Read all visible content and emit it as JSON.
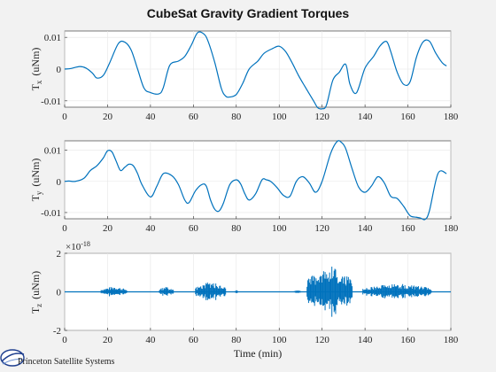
{
  "chart_data": {
    "title": "CubeSat Gravity Gradient Torques",
    "xlabel": "Time (min)",
    "xlim": [
      0,
      180
    ],
    "xticks": [
      0,
      20,
      40,
      60,
      80,
      100,
      120,
      140,
      160,
      180
    ],
    "grid": true,
    "charts": [
      {
        "type": "line",
        "ylabel_main": "T",
        "ylabel_sub": "x",
        "ylabel_unit": "(uNm)",
        "ylim": [
          -0.012,
          0.012
        ],
        "yticks": [
          -0.01,
          0,
          0.01
        ],
        "ytick_labels": [
          "-0.01",
          "0",
          "0.01"
        ],
        "color": "#0072bd",
        "series": [
          {
            "x": [
              0,
              3,
              7,
              10,
              13,
              15,
              18,
              21,
              25,
              28,
              31,
              34,
              37,
              40,
              44,
              46,
              49,
              53,
              56,
              59,
              62,
              65,
              67,
              70,
              73,
              75,
              77,
              80,
              83,
              86,
              90,
              93,
              97,
              100,
              103,
              106,
              109,
              112,
              116,
              118,
              120,
              122,
              125,
              128,
              131,
              133,
              136,
              140,
              144,
              147,
              150,
              152,
              155,
              158,
              161,
              164,
              167,
              170,
              173,
              176,
              178
            ],
            "y": [
              0,
              0.0002,
              0.0008,
              0.0003,
              -0.0013,
              -0.0028,
              -0.002,
              0.002,
              0.008,
              0.0085,
              0.006,
              0.0,
              -0.006,
              -0.0074,
              -0.0078,
              -0.0058,
              0.0012,
              0.0025,
              0.004,
              0.0075,
              0.0115,
              0.011,
              0.0085,
              0.002,
              -0.006,
              -0.0085,
              -0.0088,
              -0.008,
              -0.0045,
              0.0,
              0.0025,
              0.005,
              0.0065,
              0.0072,
              0.0055,
              0.002,
              -0.002,
              -0.0055,
              -0.01,
              -0.0122,
              -0.0125,
              -0.0114,
              -0.0035,
              -0.001,
              0.0015,
              -0.0048,
              -0.0075,
              0.0003,
              0.004,
              0.0073,
              0.0087,
              0.0055,
              -0.001,
              -0.0048,
              -0.004,
              0.0038,
              0.0085,
              0.0088,
              0.005,
              0.002,
              0.001
            ]
          }
        ]
      },
      {
        "type": "line",
        "ylabel_main": "T",
        "ylabel_sub": "y",
        "ylabel_unit": "(uNm)",
        "ylim": [
          -0.012,
          0.013
        ],
        "yticks": [
          -0.01,
          0,
          0.01
        ],
        "ytick_labels": [
          "-0.01",
          "0",
          "0.01"
        ],
        "color": "#0072bd",
        "series": [
          {
            "x": [
              0,
              2,
              5,
              9,
              12,
              15,
              18,
              20,
              22,
              24,
              26,
              28,
              30,
              32,
              34,
              36,
              40,
              43,
              46,
              50,
              53,
              56,
              58,
              61,
              64,
              66,
              68,
              70,
              72,
              74,
              77,
              80,
              82,
              84,
              86,
              89,
              92,
              94,
              96,
              99,
              102,
              105,
              108,
              111,
              114,
              117,
              120,
              124,
              127,
              129,
              131,
              134,
              137,
              140,
              143,
              146,
              149,
              152,
              155,
              158,
              161,
              164,
              166,
              168,
              170,
              174,
              178
            ],
            "y": [
              0,
              0.0001,
              0.0,
              0.001,
              0.0035,
              0.005,
              0.0075,
              0.0098,
              0.0095,
              0.0065,
              0.0035,
              0.0045,
              0.0055,
              0.005,
              0.0025,
              -0.001,
              -0.005,
              -0.0015,
              0.0025,
              0.0018,
              -0.001,
              -0.006,
              -0.0068,
              -0.003,
              -0.001,
              -0.0015,
              -0.006,
              -0.009,
              -0.0095,
              -0.007,
              -0.001,
              0.0005,
              -0.0008,
              -0.004,
              -0.006,
              -0.004,
              0.0005,
              0.0005,
              0.0,
              -0.002,
              -0.0045,
              -0.0048,
              0.0,
              0.0015,
              -0.0005,
              -0.0035,
              0.0,
              0.009,
              0.0128,
              0.0125,
              0.0105,
              0.004,
              -0.0018,
              -0.0035,
              -0.0015,
              0.0015,
              -0.0005,
              -0.0048,
              -0.0055,
              -0.008,
              -0.011,
              -0.0115,
              -0.0118,
              -0.0122,
              -0.0095,
              0.0025,
              0.0025
            ]
          }
        ]
      },
      {
        "type": "line",
        "ylabel_main": "T",
        "ylabel_sub": "z",
        "ylabel_unit": "(uNm)",
        "y_exponent": "×10",
        "y_exponent_power": "-18",
        "ylim": [
          -2,
          2
        ],
        "yticks": [
          -2,
          0,
          2
        ],
        "ytick_labels": [
          "-2",
          "0",
          "2"
        ],
        "color": "#0072bd",
        "series": [
          {
            "x": [
              0,
              180
            ],
            "y": [
              0,
              0
            ]
          }
        ],
        "bursts": [
          {
            "x": [
              17,
              29
            ],
            "amp": 0.3
          },
          {
            "x": [
              44,
              51
            ],
            "amp": 0.3
          },
          {
            "x": [
              61,
              75
            ],
            "amp": 0.55
          },
          {
            "x": [
              79,
              81
            ],
            "amp": 0.1
          },
          {
            "x": [
              107,
              110
            ],
            "amp": 0.1
          },
          {
            "x": [
              113,
              134
            ],
            "amp": 1.45
          },
          {
            "x": [
              139,
              171
            ],
            "amp": 0.45
          }
        ]
      }
    ]
  },
  "logo": {
    "text": "Princeton Satellite Systems"
  }
}
